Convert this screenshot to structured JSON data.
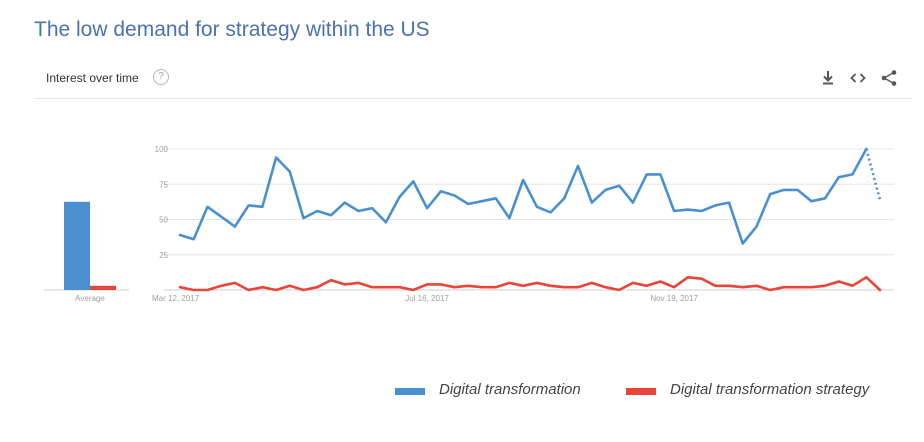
{
  "title": "The low demand for strategy within the US",
  "header": {
    "label": "Interest over time",
    "help_glyph": "?",
    "tools": [
      "download-icon",
      "embed-icon",
      "share-icon"
    ]
  },
  "colors": {
    "title": "#4a72b0",
    "series_1": "#4a90d0",
    "series_2": "#e8443a",
    "grid": "#e6e6e6",
    "axis_text": "#9e9e9e"
  },
  "chart_data": [
    {
      "type": "bar",
      "categories": [
        "Average"
      ],
      "series": [
        {
          "name": "Digital transformation",
          "values": [
            63
          ]
        },
        {
          "name": "Digital transformation strategy",
          "values": [
            3
          ]
        }
      ],
      "ylim": [
        0,
        100
      ]
    },
    {
      "type": "line",
      "title": "Interest over time",
      "xlabel": "",
      "ylabel": "",
      "ylim": [
        0,
        100
      ],
      "yticks": [
        25,
        50,
        75,
        100
      ],
      "xtick_labels": [
        {
          "label": "Mar 12, 2017",
          "index": 0
        },
        {
          "label": "Jul 16, 2017",
          "index": 18
        },
        {
          "label": "Nov 19, 2017",
          "index": 36
        }
      ],
      "partial_last_point": true,
      "series": [
        {
          "name": "Digital transformation",
          "values": [
            39,
            36,
            59,
            52,
            45,
            60,
            59,
            94,
            84,
            51,
            56,
            53,
            62,
            56,
            58,
            48,
            66,
            77,
            58,
            70,
            67,
            61,
            63,
            65,
            51,
            78,
            59,
            55,
            65,
            88,
            62,
            71,
            74,
            62,
            82,
            82,
            56,
            57,
            56,
            60,
            62,
            33,
            45,
            68,
            71,
            71,
            63,
            65,
            80,
            82,
            100,
            64
          ]
        },
        {
          "name": "Digital transformation strategy",
          "values": [
            2,
            0,
            0,
            3,
            5,
            0,
            2,
            0,
            3,
            0,
            2,
            7,
            4,
            5,
            2,
            2,
            2,
            0,
            4,
            4,
            2,
            3,
            2,
            2,
            5,
            3,
            5,
            3,
            2,
            2,
            5,
            2,
            0,
            5,
            3,
            6,
            2,
            9,
            8,
            3,
            3,
            2,
            3,
            0,
            2,
            2,
            2,
            3,
            6,
            3,
            9,
            0
          ]
        }
      ]
    }
  ]
}
